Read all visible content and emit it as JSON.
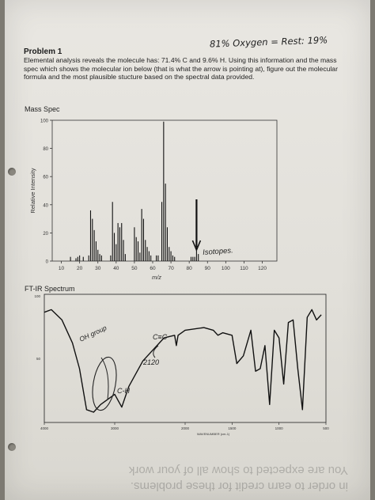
{
  "handwritten_note": "81% Oxygen = Rest: 19%",
  "problem": {
    "title": "Problem 1",
    "text": "Elemental analysis reveals the molecule has: 71.4% C and 9.6% H. Using this information and the mass spec which shows the molecular ion below (that is what the arrow is pointing at), figure out the molecular formula and the most plausible stucture based on the spectral data provided."
  },
  "mass_spec": {
    "label": "Mass Spec",
    "ylabel": "Relative Intensity",
    "xlabel": "m/z",
    "y_ticks": [
      "100",
      "80",
      "60",
      "40",
      "20",
      "0"
    ],
    "x_ticks": [
      "10",
      "20",
      "30",
      "40",
      "50",
      "60",
      "70",
      "80",
      "90",
      "100",
      "110",
      "120"
    ],
    "annotation": "Isotopes."
  },
  "ir": {
    "label": "FT-IR Spectrum",
    "y_top": "100",
    "y_mid": "50",
    "x_ticks": [
      "4000",
      "3000",
      "2000",
      "1500",
      "1000",
      "500"
    ],
    "xlabel": "WAVENUMBER (cm-1)",
    "annotations": {
      "oh": "OH group",
      "ch": "C-H",
      "cc": "C≡C",
      "wavenumber": "2120"
    }
  },
  "bleed_through": {
    "line1": "You are expected to show all of your work",
    "line2": "in order to earn credit for these problems."
  },
  "chart_data": [
    {
      "type": "bar",
      "title": "Mass Spec",
      "xlabel": "m/z",
      "ylabel": "Relative Intensity",
      "xlim": [
        5,
        128
      ],
      "ylim": [
        0,
        100
      ],
      "x": [
        15,
        18,
        19,
        20,
        22,
        25,
        26,
        27,
        28,
        29,
        30,
        31,
        32,
        37,
        38,
        39,
        40,
        41,
        42,
        43,
        44,
        45,
        50,
        51,
        52,
        53,
        54,
        55,
        56,
        57,
        58,
        59,
        62,
        63,
        65,
        66,
        67,
        68,
        69,
        70,
        71,
        72,
        81,
        82,
        83,
        84,
        85
      ],
      "values": [
        3,
        2,
        3,
        4,
        3,
        4,
        36,
        30,
        22,
        14,
        8,
        5,
        4,
        4,
        42,
        20,
        12,
        27,
        24,
        27,
        15,
        5,
        24,
        17,
        14,
        6,
        37,
        30,
        15,
        10,
        7,
        4,
        4,
        4,
        42,
        99,
        55,
        24,
        10,
        7,
        4,
        3,
        3,
        3,
        3,
        40,
        5
      ]
    },
    {
      "type": "line",
      "title": "FT-IR Spectrum",
      "xlabel": "WAVENUMBER (cm-1)",
      "xlim": [
        4000,
        500
      ],
      "ylim": [
        0,
        100
      ],
      "x": [
        4000,
        3900,
        3750,
        3600,
        3500,
        3400,
        3300,
        3200,
        3000,
        2900,
        2800,
        2600,
        2300,
        2150,
        2125,
        2100,
        2000,
        1800,
        1700,
        1650,
        1600,
        1500,
        1450,
        1380,
        1300,
        1250,
        1200,
        1150,
        1100,
        1050,
        1000,
        950,
        900,
        850,
        800,
        750,
        700,
        650,
        600,
        550
      ],
      "values": [
        86,
        88,
        80,
        62,
        42,
        10,
        8,
        14,
        22,
        12,
        28,
        48,
        66,
        68,
        60,
        68,
        72,
        74,
        72,
        68,
        70,
        68,
        46,
        52,
        72,
        40,
        42,
        60,
        14,
        72,
        66,
        30,
        78,
        80,
        42,
        10,
        82,
        88,
        80,
        84
      ]
    }
  ]
}
